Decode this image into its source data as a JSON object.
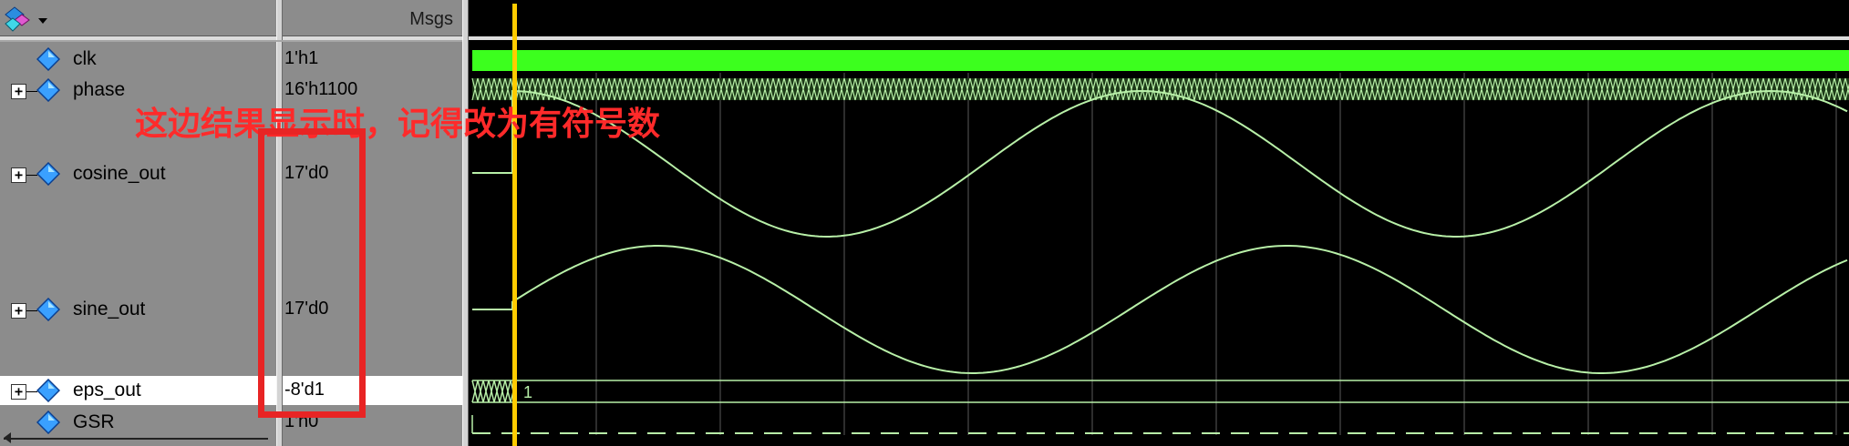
{
  "header": {
    "msgs_label": "Msgs"
  },
  "signals": [
    {
      "name": "clk",
      "value": "1'h1",
      "expandable": false
    },
    {
      "name": "phase",
      "value": "16'h1100",
      "expandable": true
    },
    {
      "name": "cosine_out",
      "value": "17'd0",
      "expandable": true
    },
    {
      "name": "sine_out",
      "value": "17'd0",
      "expandable": true
    },
    {
      "name": "eps_out",
      "value": "-8'd1",
      "expandable": true
    },
    {
      "name": "GSR",
      "value": "1'h0",
      "expandable": false
    }
  ],
  "waveform": {
    "eps_label": "1"
  },
  "annotation": {
    "text": "这边结果显示时，记得改为有符号数"
  },
  "colors": {
    "pane_bg": "#8c8c8c",
    "wave_bg": "#000000",
    "clk_fill": "#3cff1e",
    "wave_line": "#b8f0a8",
    "cursor": "#ffcc00",
    "annotation": "#ff2a2a"
  }
}
